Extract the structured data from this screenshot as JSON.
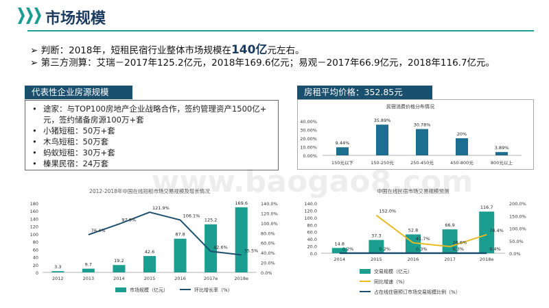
{
  "header": {
    "title": "市场规模",
    "icon": "chevron-right-icon"
  },
  "bullets": [
    {
      "pre": "判断：2018年，短租民宿行业整体市场规模在",
      "big": "140亿",
      "post": "元左右。"
    },
    {
      "pre": "第三方测算：艾瑞－2017年125.2亿元，2018年169.6亿元；易观－2017年66.9亿元，2018年116.7亿元。",
      "big": "",
      "post": ""
    }
  ],
  "left_panel": {
    "tag": "代表性企业房源规模",
    "items": [
      {
        "line1": "途家：与TOP100房地产企业战略合作，签约管理资产1500亿+",
        "line2": "元，签约储备房源100万+套"
      },
      {
        "line1": "小猪短租：50万+套",
        "line2": ""
      },
      {
        "line1": "木鸟短租：50万套",
        "line2": ""
      },
      {
        "line1": "蚂蚁短租：30万+套",
        "line2": ""
      },
      {
        "line1": "榛果民宿：24万套",
        "line2": ""
      }
    ]
  },
  "right_panel": {
    "tag": "房租平均价格：352.85元"
  },
  "colors": {
    "teal": "#1b9e8f",
    "navy": "#1b4f6e",
    "gold": "#e8b923",
    "title": "#1b3a5e"
  },
  "watermark": "www.baogao8.com",
  "chart_data": [
    {
      "id": "price",
      "type": "bar",
      "title": "民宿消费价格分布情况",
      "categories": [
        "150元以下",
        "150-250元",
        "250-450元",
        "450-800元",
        "800元以上"
      ],
      "values": [
        9.44,
        35.89,
        30.78,
        20,
        3.89
      ],
      "value_labels": [
        "9.44%",
        "35.89%",
        "30.78%",
        "20%",
        "3.89%"
      ],
      "y_ticks": [
        "40.00%",
        "30.00%",
        "20.00%",
        "10.00%",
        "0.00%"
      ],
      "ylim": [
        0,
        40
      ],
      "grid": false,
      "legend": "none"
    },
    {
      "id": "irui",
      "type": "bar",
      "title": "2012-2018年中国在线短租市场交易规模及增长情况",
      "categories": [
        "2012",
        "2013",
        "2014",
        "2015",
        "2016",
        "2017e",
        "2018e"
      ],
      "ylim": [
        0,
        180
      ],
      "y2lim": [
        0,
        140
      ],
      "y_ticks": [
        "180",
        "160",
        "140",
        "120",
        "100",
        "80",
        "60",
        "40",
        "20",
        "0"
      ],
      "y2_ticks": [
        "140.0%",
        "120.0%",
        "100.0%",
        "80.0%",
        "60.0%",
        "40.0%",
        "20.0%",
        "0.0%"
      ],
      "series": [
        {
          "name": "市场规模（亿元）",
          "kind": "bar",
          "values": [
            3.3,
            9.7,
            19.2,
            42.6,
            87.8,
            125.2,
            169.6
          ],
          "labels": [
            "3.3",
            "9.7",
            "19.2",
            "42.6",
            "87.8",
            "125.2",
            "169.6"
          ]
        },
        {
          "name": "环比增长率（%）",
          "kind": "line",
          "axis": "right",
          "values": [
            null,
            76.4,
            97.9,
            121.9,
            106.1,
            42.6,
            35.5
          ],
          "labels": [
            "",
            "76.4%",
            "97.9%",
            "121.9%",
            "106.1%",
            "42.6%",
            "35.5%"
          ]
        }
      ],
      "legend": "bottom"
    },
    {
      "id": "yiguan",
      "type": "bar",
      "title": "中国在线民宿市场交易规模预测",
      "categories": [
        "2014",
        "2015",
        "2016",
        "2017",
        "2018e"
      ],
      "ylim": [
        0,
        140
      ],
      "y2lim": [
        0,
        200
      ],
      "y_ticks": [
        "140.0",
        "120.0",
        "100.0",
        "80.0",
        "60.0",
        "40.0",
        "20.0",
        "0.0"
      ],
      "y2_ticks": [
        "200.0%",
        "150.0%",
        "100.0%",
        "50.0%",
        "0.0%"
      ],
      "series": [
        {
          "name": "交易规模（亿元）",
          "kind": "bar",
          "values": [
            14.8,
            37.3,
            52.8,
            66.9,
            116.7
          ],
          "labels": [
            "14.8",
            "37.3",
            "52.8",
            "66.9",
            "116.7"
          ]
        },
        {
          "name": "同比增速（%）",
          "kind": "line",
          "axis": "right",
          "values": [
            null,
            152.0,
            41.7,
            26.6,
            74.4
          ],
          "labels": [
            "",
            "152.0%",
            "41.7%",
            "26.6%",
            "74.4%"
          ]
        },
        {
          "name": "占在线住宿预订市场交易规模比例（%）",
          "kind": "line",
          "axis": "right",
          "values": [
            0.2,
            0.2,
            0.3,
            0.3,
            0.4
          ],
          "labels": [
            "0.2%",
            "0.2%",
            "0.3%",
            "0.3%",
            "0.4%"
          ]
        }
      ],
      "legend": "bottom"
    }
  ]
}
